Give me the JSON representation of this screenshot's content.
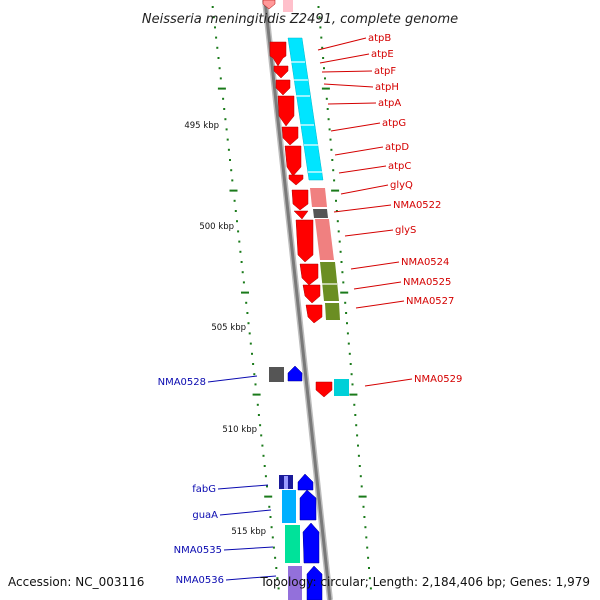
{
  "title": "Neisseria meningitidis Z2491, complete genome",
  "footer": {
    "accession": "Accession: NC_003116",
    "topology": "Topology: circular; Length: 2,184,406 bp; Genes: 1,979"
  },
  "scale_labels": [
    "495 kbp",
    "500 kbp",
    "505 kbp",
    "510 kbp",
    "515 kbp"
  ],
  "colors": {
    "forward_gene": "#ff0000",
    "reverse_gene": "#0000ff",
    "backbone": "#909090",
    "tick": "#1a7a1a",
    "label_forward": "#d40000",
    "label_reverse": "#0a0ab0"
  },
  "forward_gene_labels": [
    "atpB",
    "atpE",
    "atpF",
    "atpH",
    "atpA",
    "atpG",
    "atpD",
    "atpC",
    "glyQ",
    "NMA0522",
    "glyS",
    "NMA0524",
    "NMA0525",
    "NMA0527",
    "NMA0529"
  ],
  "reverse_gene_labels": [
    "NMA0528",
    "fabG",
    "guaA",
    "NMA0535",
    "NMA0536"
  ]
}
